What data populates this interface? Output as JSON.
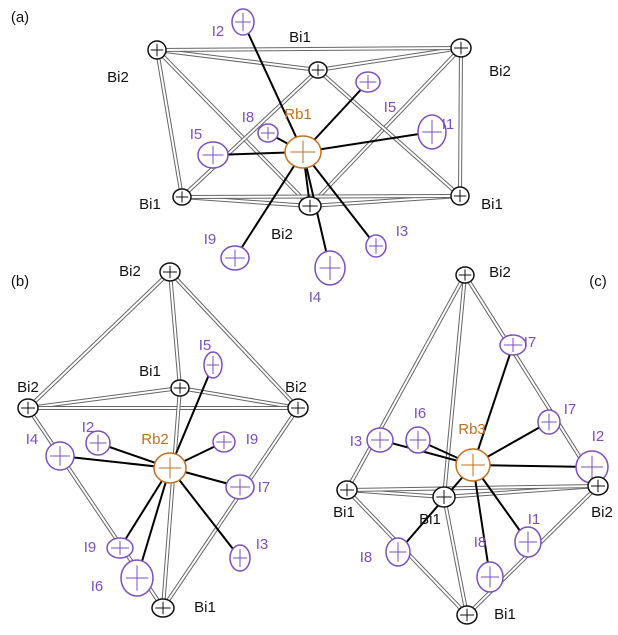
{
  "panels": [
    {
      "label": "(a)",
      "atoms": [
        "Bi2",
        "Bi1",
        "Bi2",
        "I2",
        "I5",
        "I1",
        "Rb1",
        "I8",
        "I5",
        "Bi1",
        "Bi1",
        "Bi2",
        "I9",
        "I3",
        "I4"
      ]
    },
    {
      "label": "(b)",
      "atoms": [
        "Bi2",
        "Bi2",
        "Bi1",
        "Bi2",
        "I5",
        "I2",
        "I4",
        "Rb2",
        "I9",
        "I7",
        "I9",
        "I3",
        "I6",
        "Bi1"
      ]
    },
    {
      "label": "(c)",
      "atoms": [
        "Bi2",
        "I7",
        "I7",
        "I6",
        "I3",
        "Rb3",
        "I2",
        "Bi1",
        "Bi1",
        "Bi2",
        "I1",
        "I8",
        "I8",
        "Bi1"
      ]
    }
  ]
}
